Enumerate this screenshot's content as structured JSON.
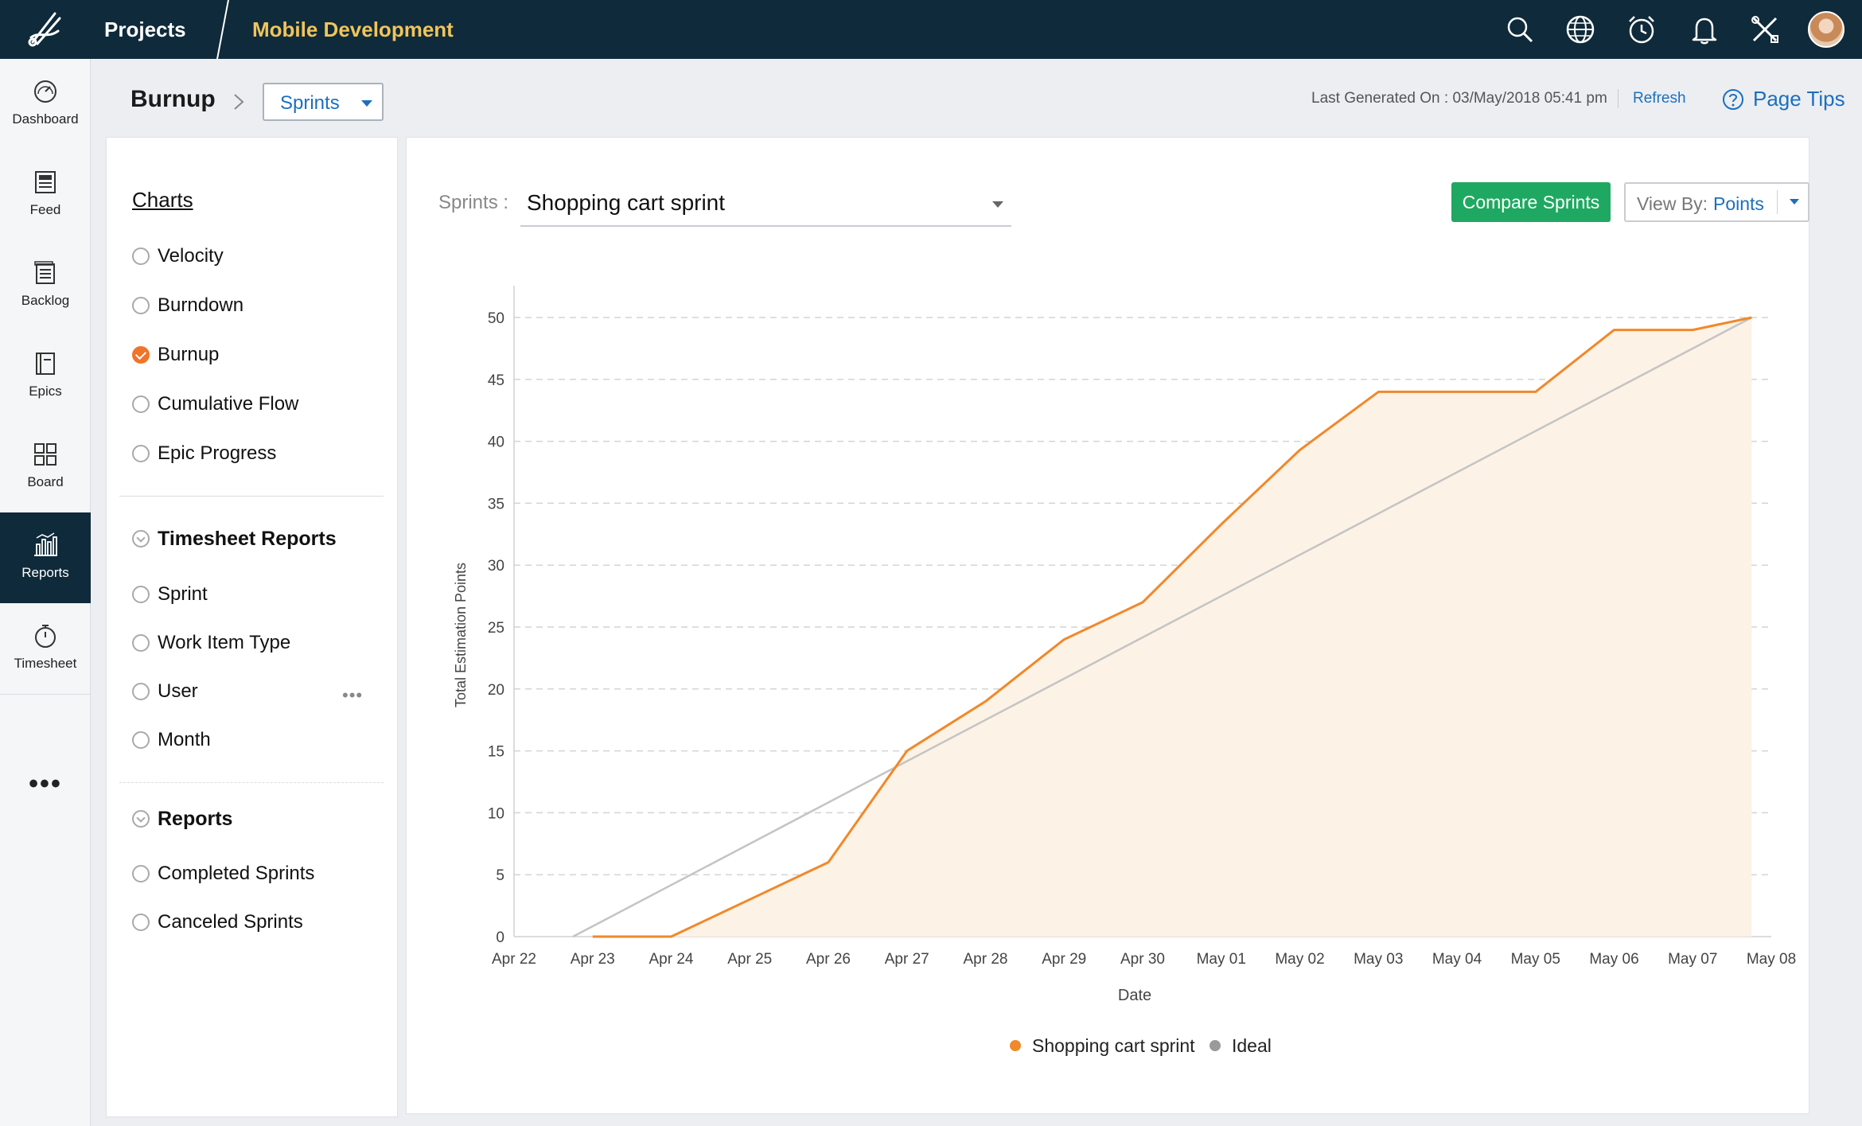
{
  "topbar": {
    "projects_label": "Projects",
    "project_name": "Mobile Development",
    "icons": [
      "search-icon",
      "globe-icon",
      "alarm-clock-icon",
      "bell-icon",
      "tools-icon"
    ]
  },
  "leftnav": {
    "items": [
      {
        "label": "Dashboard",
        "icon": "dashboard-icon"
      },
      {
        "label": "Feed",
        "icon": "feed-icon"
      },
      {
        "label": "Backlog",
        "icon": "backlog-icon"
      },
      {
        "label": "Epics",
        "icon": "epics-icon"
      },
      {
        "label": "Board",
        "icon": "board-icon"
      },
      {
        "label": "Reports",
        "icon": "reports-icon",
        "active": true
      },
      {
        "label": "Timesheet",
        "icon": "timesheet-icon"
      }
    ],
    "more": "•••"
  },
  "header": {
    "title": "Burnup",
    "selector_value": "Sprints",
    "last_generated": "Last Generated On : 03/May/2018 05:41 pm",
    "refresh": "Refresh",
    "page_tips": "Page Tips"
  },
  "sidepanel": {
    "charts_title": "Charts",
    "charts": [
      "Velocity",
      "Burndown",
      "Burnup",
      "Cumulative Flow",
      "Epic Progress"
    ],
    "selected_chart": "Burnup",
    "timesheet_title": "Timesheet Reports",
    "timesheet": [
      "Sprint",
      "Work Item Type",
      "User",
      "Month"
    ],
    "reports_title": "Reports",
    "reports": [
      "Completed Sprints",
      "Canceled Sprints"
    ]
  },
  "main": {
    "sprints_label": "Sprints :",
    "sprint_value": "Shopping cart sprint",
    "compare_button": "Compare Sprints",
    "viewby_label": "View By:",
    "viewby_value": "Points"
  },
  "colors": {
    "accent_orange": "#f0892a",
    "ideal_gray": "#c4c4c4",
    "area_fill": "#fdf2e6",
    "compare_green": "#1fa861",
    "link_blue": "#1b6fc0",
    "topbar_navy": "#0f2a3a"
  },
  "chart_data": {
    "type": "line",
    "xlabel": "Date",
    "ylabel": "Total Estimation Points",
    "ylim": [
      0,
      50
    ],
    "yticks": [
      0,
      5,
      10,
      15,
      20,
      25,
      30,
      35,
      40,
      45,
      50
    ],
    "grid": true,
    "legend_position": "bottom",
    "categories": [
      "Apr 22",
      "Apr 23",
      "Apr 24",
      "Apr 25",
      "Apr 26",
      "Apr 27",
      "Apr 28",
      "Apr 29",
      "Apr 30",
      "May 01",
      "May 02",
      "May 03",
      "May 04",
      "May 05",
      "May 06",
      "May 07",
      "May 08"
    ],
    "series": [
      {
        "name": "Shopping cart sprint",
        "color": "#f0892a",
        "filled": true,
        "points": [
          [
            1,
            0
          ],
          [
            2,
            0
          ],
          [
            3,
            3
          ],
          [
            4,
            6
          ],
          [
            5,
            15
          ],
          [
            6,
            19
          ],
          [
            7,
            24
          ],
          [
            8,
            27
          ],
          [
            9,
            33.3
          ],
          [
            10,
            39.3
          ],
          [
            11,
            44
          ],
          [
            12,
            44
          ],
          [
            13,
            44
          ],
          [
            14,
            49
          ],
          [
            15,
            49
          ],
          [
            15.75,
            50
          ]
        ]
      },
      {
        "name": "Ideal",
        "color": "#c4c4c4",
        "filled": false,
        "points": [
          [
            0.75,
            0
          ],
          [
            15.75,
            50
          ]
        ]
      }
    ]
  }
}
